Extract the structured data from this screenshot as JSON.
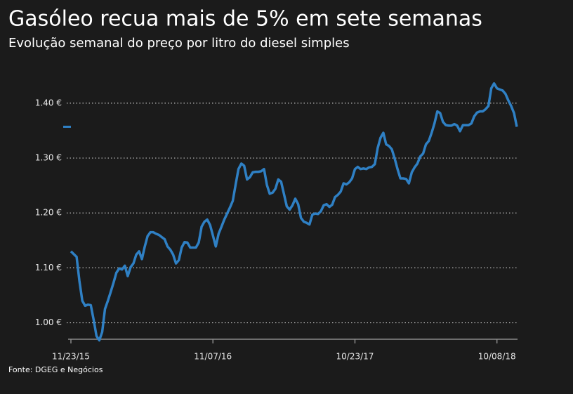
{
  "chart_data": {
    "type": "line",
    "title": "Gasóleo recua mais de 5% em sete semanas",
    "subtitle": "Evolução semanal do preço por litro do diesel simples",
    "source": "Fonte: DGEG e Negócios",
    "x": [
      "11/23/15",
      "11/30/15",
      "12/07/15",
      "12/14/15",
      "12/21/15",
      "12/28/15",
      "01/04/16",
      "01/11/16",
      "01/18/16",
      "01/25/16",
      "02/01/16",
      "02/08/16",
      "02/15/16",
      "02/22/16",
      "02/29/16",
      "03/07/16",
      "03/14/16",
      "03/21/16",
      "03/28/16",
      "04/04/16",
      "04/11/16",
      "04/18/16",
      "04/25/16",
      "05/02/16",
      "05/09/16",
      "05/16/16",
      "05/23/16",
      "05/30/16",
      "06/06/16",
      "06/13/16",
      "06/20/16",
      "06/27/16",
      "07/04/16",
      "07/11/16",
      "07/18/16",
      "07/25/16",
      "08/01/16",
      "08/08/16",
      "08/15/16",
      "08/22/16",
      "08/29/16",
      "09/05/16",
      "09/12/16",
      "09/19/16",
      "09/26/16",
      "10/03/16",
      "10/10/16",
      "10/17/16",
      "10/24/16",
      "10/31/16",
      "11/07/16",
      "11/14/16",
      "11/21/16",
      "11/28/16",
      "12/05/16",
      "12/12/16",
      "12/19/16",
      "12/26/16",
      "01/02/17",
      "01/09/17",
      "01/16/17",
      "01/23/17",
      "01/30/17",
      "02/06/17",
      "02/13/17",
      "02/20/17",
      "02/27/17",
      "03/06/17",
      "03/13/17",
      "03/20/17",
      "03/27/17",
      "04/03/17",
      "04/10/17",
      "04/17/17",
      "04/24/17",
      "05/01/17",
      "05/08/17",
      "05/15/17",
      "05/22/17",
      "05/29/17",
      "06/05/17",
      "06/12/17",
      "06/19/17",
      "06/26/17",
      "07/03/17",
      "07/10/17",
      "07/17/17",
      "07/24/17",
      "07/31/17",
      "08/07/17",
      "08/14/17",
      "08/21/17",
      "08/28/17",
      "09/04/17",
      "09/11/17",
      "09/18/17",
      "09/25/17",
      "10/02/17",
      "10/09/17",
      "10/16/17",
      "10/23/17",
      "10/30/17",
      "11/06/17",
      "11/13/17",
      "11/20/17",
      "11/27/17",
      "12/04/17",
      "12/11/17",
      "12/18/17",
      "12/25/17",
      "01/01/18",
      "01/08/18",
      "01/15/18",
      "01/22/18",
      "01/29/18",
      "02/05/18",
      "02/12/18",
      "02/19/18",
      "02/26/18",
      "03/05/18",
      "03/12/18",
      "03/19/18",
      "03/26/18",
      "04/02/18",
      "04/09/18",
      "04/16/18",
      "04/23/18",
      "04/30/18",
      "05/07/18",
      "05/14/18",
      "05/21/18",
      "05/28/18",
      "06/04/18",
      "06/11/18",
      "06/18/18",
      "06/25/18",
      "07/02/18",
      "07/09/18",
      "07/16/18",
      "07/23/18",
      "07/30/18",
      "08/06/18",
      "08/13/18",
      "08/20/18",
      "08/27/18",
      "09/03/18",
      "09/10/18",
      "09/17/18",
      "09/24/18",
      "10/01/18",
      "10/08/18",
      "10/15/18",
      "10/22/18",
      "10/29/18",
      "11/05/18",
      "11/12/18",
      "11/19/18",
      "11/26/18"
    ],
    "series": [
      {
        "color": "#2f80c4",
        "values": [
          1.13,
          1.125,
          1.12,
          1.076,
          1.04,
          1.031,
          1.033,
          1.032,
          1.005,
          0.976,
          0.968,
          0.983,
          1.025,
          1.04,
          1.056,
          1.073,
          1.091,
          1.099,
          1.097,
          1.104,
          1.085,
          1.101,
          1.108,
          1.124,
          1.13,
          1.116,
          1.139,
          1.158,
          1.165,
          1.165,
          1.162,
          1.16,
          1.156,
          1.152,
          1.139,
          1.133,
          1.124,
          1.108,
          1.114,
          1.137,
          1.147,
          1.146,
          1.137,
          1.137,
          1.137,
          1.146,
          1.175,
          1.184,
          1.188,
          1.178,
          1.159,
          1.139,
          1.162,
          1.175,
          1.188,
          1.199,
          1.21,
          1.222,
          1.252,
          1.28,
          1.29,
          1.286,
          1.261,
          1.265,
          1.274,
          1.275,
          1.275,
          1.276,
          1.28,
          1.251,
          1.235,
          1.237,
          1.244,
          1.261,
          1.257,
          1.235,
          1.212,
          1.206,
          1.214,
          1.226,
          1.216,
          1.191,
          1.184,
          1.182,
          1.179,
          1.197,
          1.199,
          1.198,
          1.203,
          1.214,
          1.216,
          1.211,
          1.215,
          1.229,
          1.233,
          1.239,
          1.254,
          1.252,
          1.256,
          1.263,
          1.28,
          1.284,
          1.28,
          1.281,
          1.28,
          1.283,
          1.284,
          1.289,
          1.318,
          1.337,
          1.346,
          1.325,
          1.322,
          1.316,
          1.299,
          1.28,
          1.263,
          1.263,
          1.262,
          1.254,
          1.274,
          1.283,
          1.29,
          1.303,
          1.308,
          1.325,
          1.331,
          1.346,
          1.363,
          1.385,
          1.382,
          1.366,
          1.36,
          1.359,
          1.359,
          1.362,
          1.359,
          1.349,
          1.36,
          1.36,
          1.36,
          1.363,
          1.376,
          1.383,
          1.385,
          1.385,
          1.389,
          1.395,
          1.427,
          1.436,
          1.427,
          1.425,
          1.423,
          1.417,
          1.405,
          1.395,
          1.382,
          1.357
        ]
      }
    ],
    "xlim": [
      "11/23/15",
      "11/26/18"
    ],
    "xticks": [
      "11/23/15",
      "11/07/16",
      "10/23/17",
      "10/08/18"
    ],
    "ylim": [
      0.97,
      1.46
    ],
    "yticks": [
      {
        "value": 1.0,
        "label": "1.00 €"
      },
      {
        "value": 1.1,
        "label": "1.10 €"
      },
      {
        "value": 1.2,
        "label": "1.20 €"
      },
      {
        "value": 1.3,
        "label": "1.30 €"
      },
      {
        "value": 1.4,
        "label": "1.40 €"
      }
    ],
    "grid": true
  }
}
